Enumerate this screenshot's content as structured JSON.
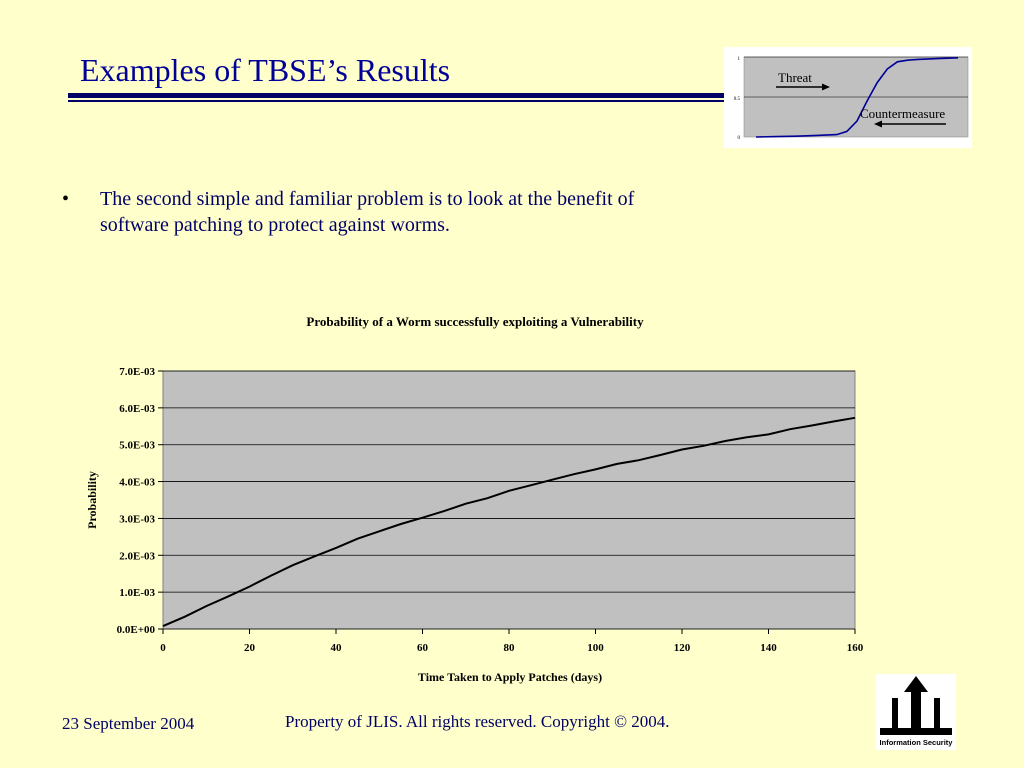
{
  "slide": {
    "title": "Examples of TBSE’s Results",
    "bullet_symbol": "•",
    "bullet_text": "The second simple and familiar problem is to look at the benefit of software patching to protect against worms.",
    "footer_date": "23 September 2004",
    "footer_copyright": "Property of JLIS.  All rights reserved.  Copyright © 2004.",
    "logo_caption": "Information Security",
    "colors": {
      "background": "#FFFFCC",
      "title": "#000099",
      "text": "#000066",
      "plot_area": "#C0C0C0"
    }
  },
  "chart_data": [
    {
      "type": "line",
      "title": "Probability of a Worm successfully exploiting a Vulnerability",
      "xlabel": "Time Taken to Apply Patches (days)",
      "ylabel": "Probability",
      "xlim": [
        0,
        160
      ],
      "ylim": [
        0,
        0.007
      ],
      "x_ticks": [
        "0",
        "20",
        "40",
        "60",
        "80",
        "100",
        "120",
        "140",
        "160"
      ],
      "y_ticks": [
        "0.0E+00",
        "1.0E-03",
        "2.0E-03",
        "3.0E-03",
        "4.0E-03",
        "5.0E-03",
        "6.0E-03",
        "7.0E-03"
      ],
      "grid": true,
      "legend": "none",
      "x": [
        0,
        5,
        10,
        15,
        20,
        25,
        30,
        35,
        40,
        45,
        50,
        55,
        60,
        65,
        70,
        75,
        80,
        85,
        90,
        95,
        100,
        105,
        110,
        115,
        120,
        125,
        130,
        135,
        140,
        145,
        150,
        155,
        160
      ],
      "series": [
        {
          "values": [
            8e-05,
            0.00033,
            0.00062,
            0.00088,
            0.00115,
            0.00145,
            0.00173,
            0.00197,
            0.0022,
            0.00245,
            0.00265,
            0.00285,
            0.00302,
            0.0032,
            0.0034,
            0.00355,
            0.00375,
            0.0039,
            0.00405,
            0.0042,
            0.00433,
            0.00448,
            0.00458,
            0.00472,
            0.00487,
            0.00497,
            0.0051,
            0.0052,
            0.00528,
            0.00542,
            0.00552,
            0.00563,
            0.00573
          ]
        }
      ]
    },
    {
      "type": "line",
      "title": "",
      "annotations": [
        "Threat",
        "Countermeasure"
      ],
      "ylim": [
        0,
        1
      ],
      "y_ticks": [
        "0",
        "0.5",
        "1"
      ],
      "x": [
        0,
        10,
        20,
        30,
        40,
        45,
        50,
        55,
        60,
        65,
        70,
        75,
        80,
        90,
        100
      ],
      "series": [
        {
          "values": [
            0,
            0.005,
            0.01,
            0.02,
            0.03,
            0.07,
            0.2,
            0.45,
            0.68,
            0.85,
            0.94,
            0.96,
            0.97,
            0.98,
            0.99
          ]
        }
      ]
    }
  ]
}
